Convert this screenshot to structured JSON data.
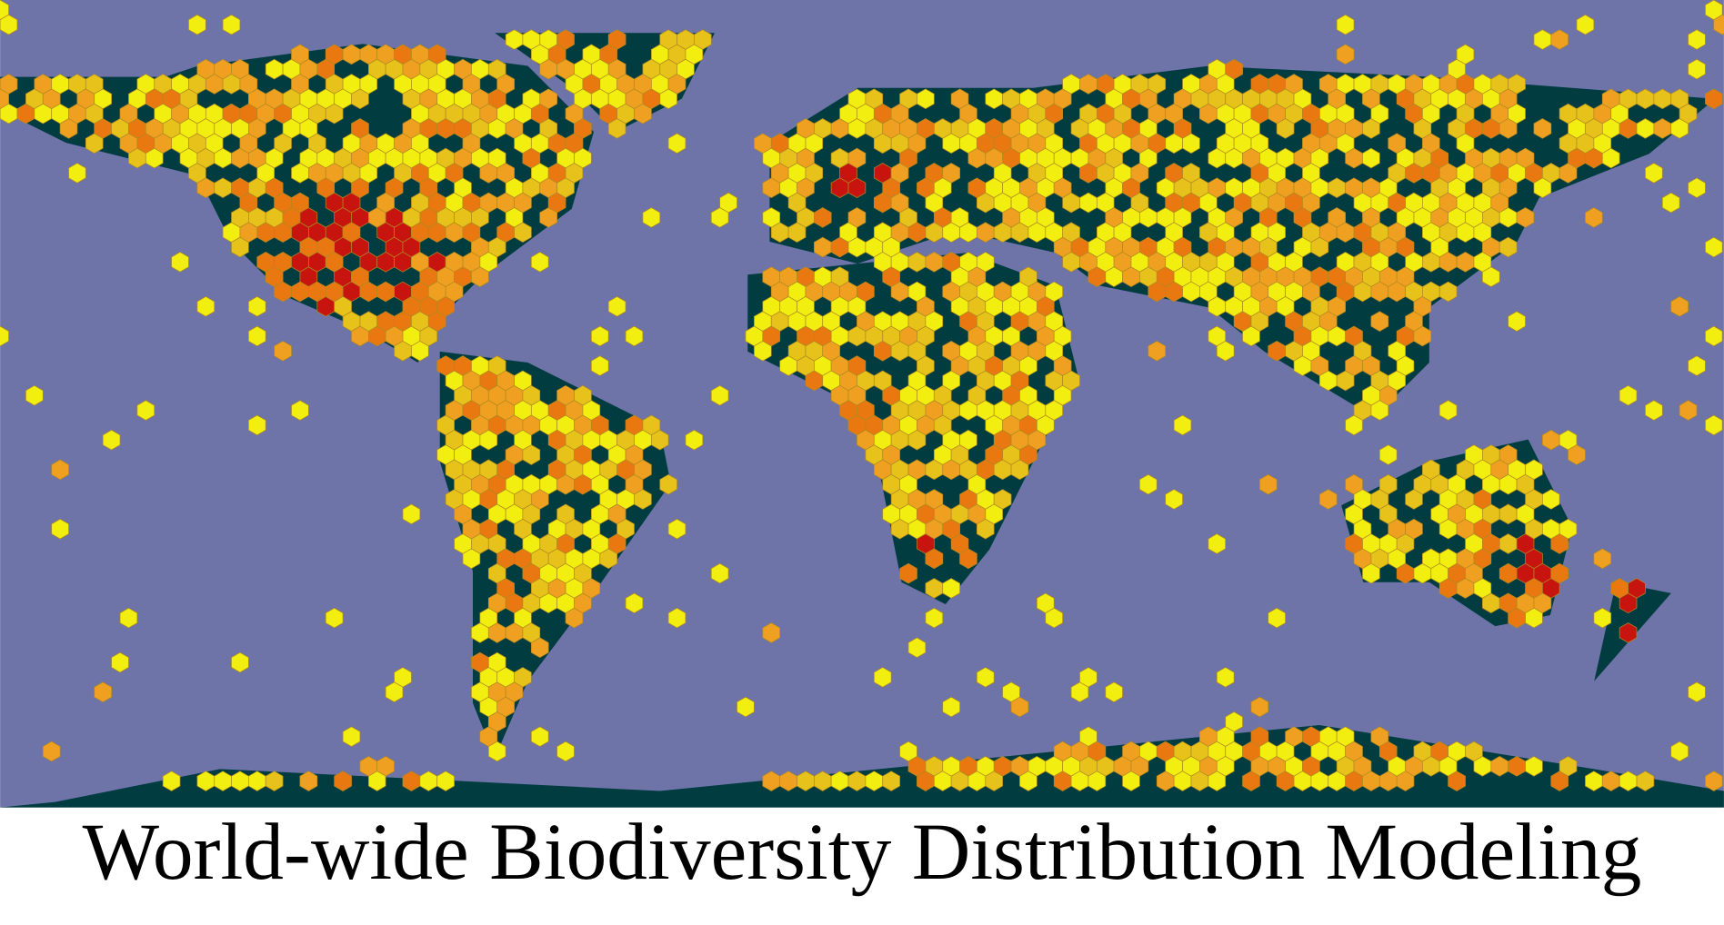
{
  "caption": "World-wide Biodiversity Distribution Modeling"
}
